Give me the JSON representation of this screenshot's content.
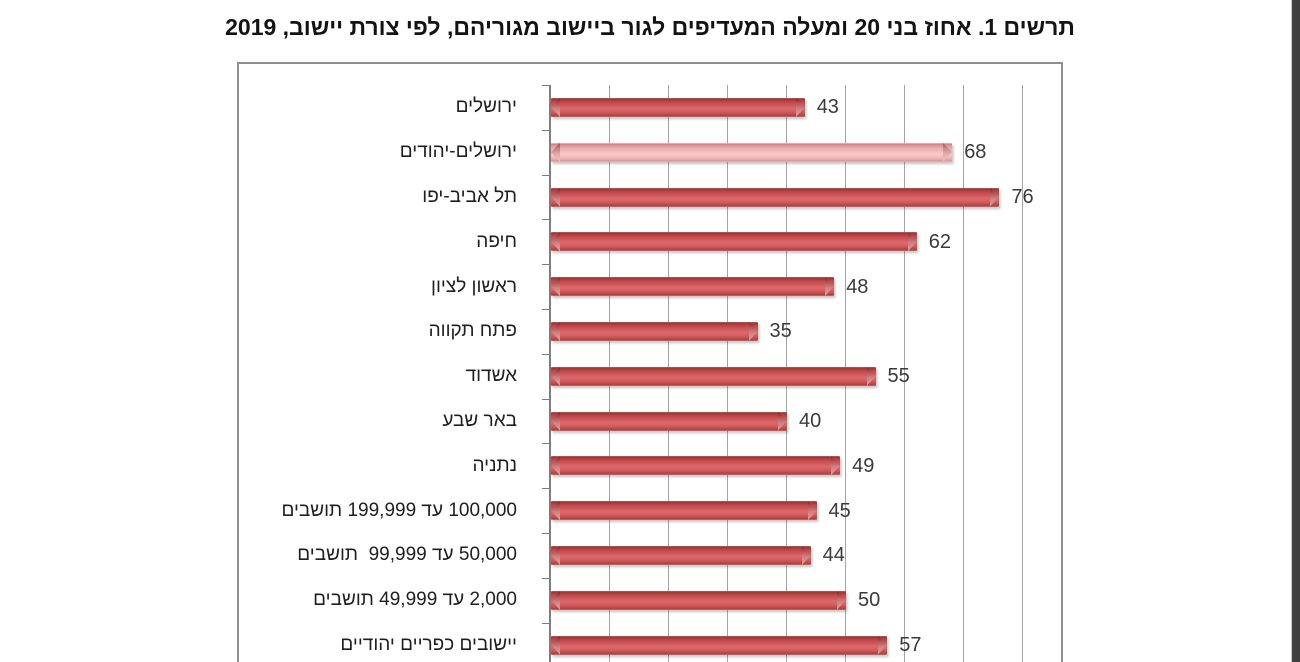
{
  "chart_data": {
    "type": "bar",
    "orientation": "horizontal",
    "rtl": true,
    "title": "תרשים 1. אחוז בני 20 ומעלה המעדיפים לגור ביישוב מגוריהם, לפי צורת יישוב, 2019",
    "categories": [
      "ירושלים",
      "ירושלים-יהודים",
      "תל אביב-יפו",
      "חיפה",
      "ראשון לציון",
      "פתח תקווה",
      "אשדוד",
      "באר שבע",
      "נתניה",
      "100,000 עד 199,999 תושבים",
      "50,000 עד 99,999  תושבים",
      "2,000 עד 49,999 תושבים",
      "יישובים כפריים יהודיים"
    ],
    "values": [
      43,
      68,
      76,
      62,
      48,
      35,
      55,
      40,
      49,
      45,
      44,
      50,
      57
    ],
    "highlight_index": 1,
    "value_labels_shown": true,
    "xlabel": "",
    "ylabel": "",
    "axis": {
      "min": 0,
      "gridline_interval": 10,
      "last_gridline": 80,
      "gridlines_visible": true
    },
    "colors": {
      "bar": "#CB5153",
      "bar_highlight": "#EFB5B6",
      "gridline": "#A4A4A4",
      "axis_line": "#7E7E7E",
      "box_border": "#8F8F8F",
      "title_text": "#131313",
      "category_label_text": "#1F1F1F",
      "value_label_text": "#3A3A3A"
    }
  },
  "page": {
    "background": "#FFFFFF",
    "viewer_edge_strip_color": "#3F3F3F"
  }
}
